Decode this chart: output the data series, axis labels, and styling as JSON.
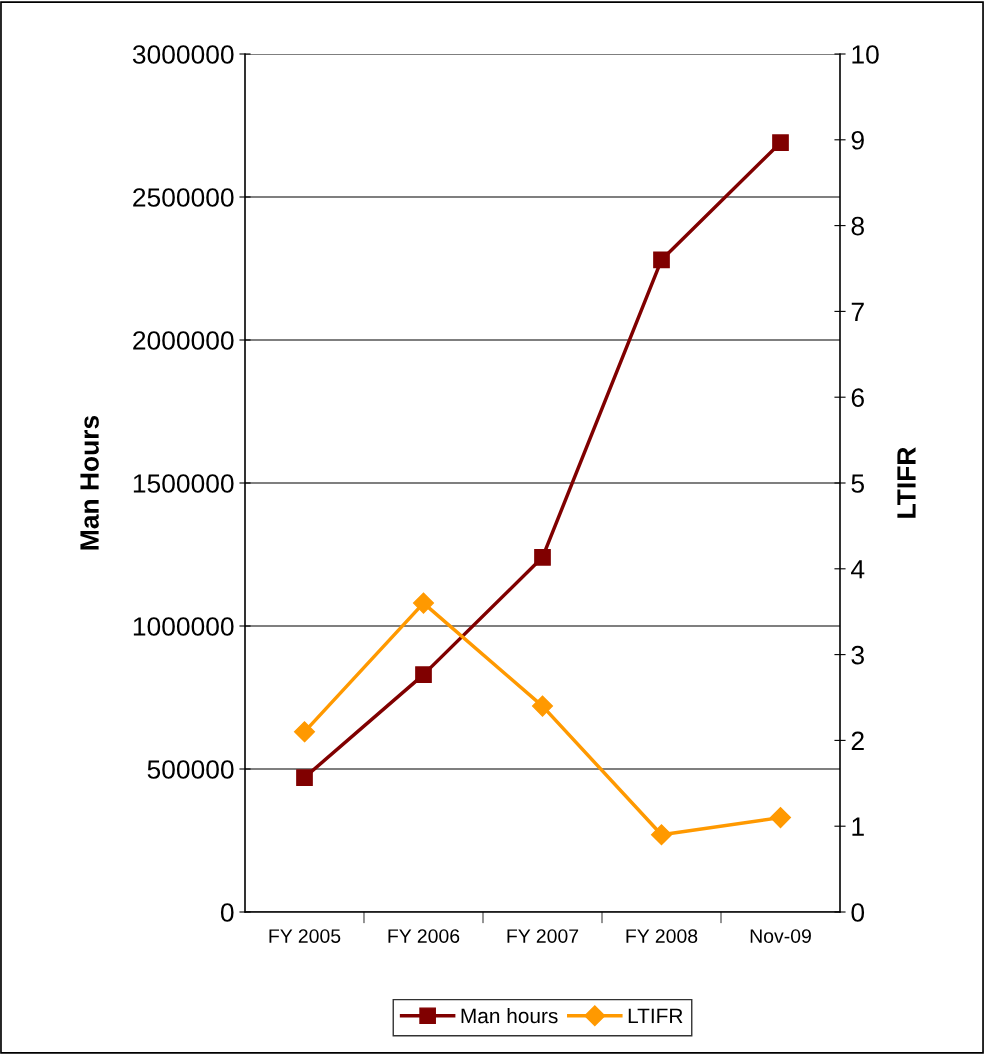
{
  "chart_data": {
    "type": "line",
    "categories": [
      "FY 2005",
      "FY 2006",
      "FY 2007",
      "FY 2008",
      "Nov-09"
    ],
    "ylabel": "Man Hours",
    "y2label": "LTIFR",
    "series": [
      {
        "name": "Man hours",
        "color": "#800000",
        "values": [
          470000,
          830000,
          1240000,
          2280000,
          2690000
        ],
        "marker": "square"
      },
      {
        "name": "LTIFR",
        "color": "#ff9900",
        "values": [
          2.1,
          3.6,
          2.4,
          0.9,
          1.1
        ],
        "axis": "y2",
        "marker": "diamond"
      }
    ],
    "ylim": [
      0,
      3000000
    ],
    "yticks": [
      0,
      500000,
      1000000,
      1500000,
      2000000,
      2500000,
      3000000
    ],
    "y2lim": [
      0,
      10
    ],
    "y2ticks": [
      0,
      1,
      2,
      3,
      4,
      5,
      6,
      7,
      8,
      9,
      10
    ],
    "grid": "y",
    "legend": "bottom",
    "line_style": "solid"
  }
}
